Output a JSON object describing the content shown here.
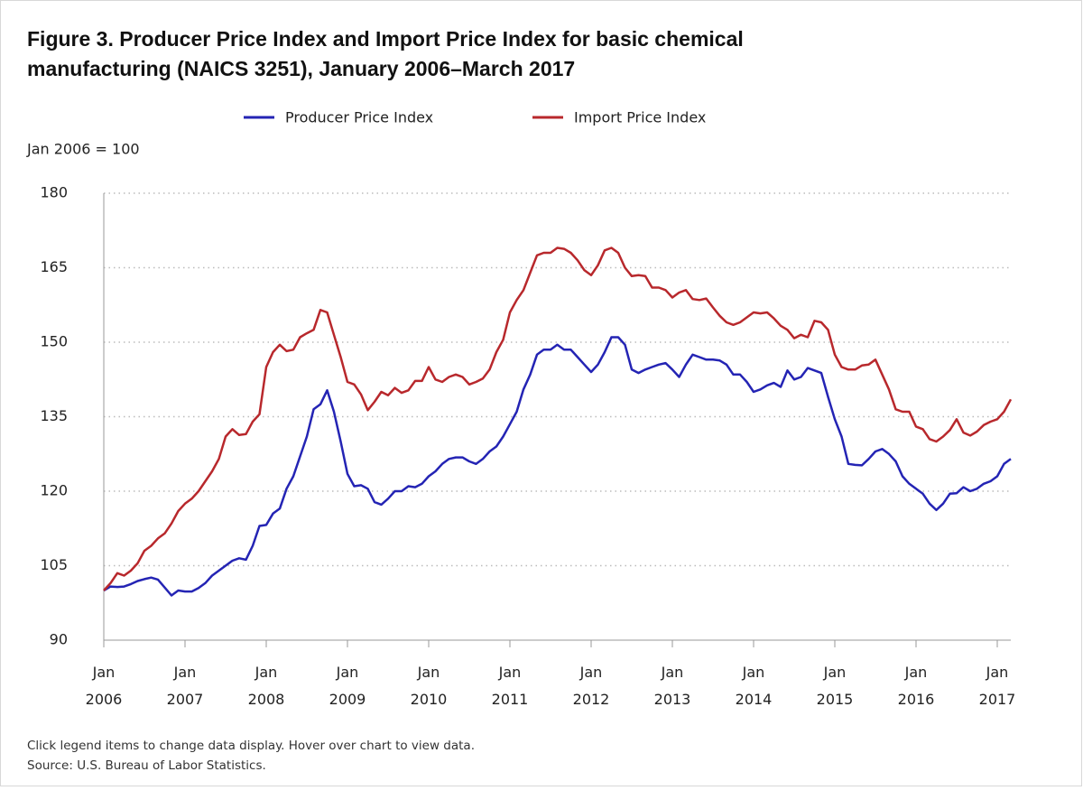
{
  "chart_data": {
    "type": "line",
    "title": "Figure 3. Producer Price Index and Import Price Index for basic chemical manufacturing (NAICS 3251), January 2006–March 2017",
    "y_label": "Jan 2006 = 100",
    "notes": [
      "Click legend items to change data display. Hover over chart to view data.",
      "Source: U.S. Bureau of Labor Statistics."
    ],
    "x": [
      "2006-01",
      "2006-02",
      "2006-03",
      "2006-04",
      "2006-05",
      "2006-06",
      "2006-07",
      "2006-08",
      "2006-09",
      "2006-10",
      "2006-11",
      "2006-12",
      "2007-01",
      "2007-02",
      "2007-03",
      "2007-04",
      "2007-05",
      "2007-06",
      "2007-07",
      "2007-08",
      "2007-09",
      "2007-10",
      "2007-11",
      "2007-12",
      "2008-01",
      "2008-02",
      "2008-03",
      "2008-04",
      "2008-05",
      "2008-06",
      "2008-07",
      "2008-08",
      "2008-09",
      "2008-10",
      "2008-11",
      "2008-12",
      "2009-01",
      "2009-02",
      "2009-03",
      "2009-04",
      "2009-05",
      "2009-06",
      "2009-07",
      "2009-08",
      "2009-09",
      "2009-10",
      "2009-11",
      "2009-12",
      "2010-01",
      "2010-02",
      "2010-03",
      "2010-04",
      "2010-05",
      "2010-06",
      "2010-07",
      "2010-08",
      "2010-09",
      "2010-10",
      "2010-11",
      "2010-12",
      "2011-01",
      "2011-02",
      "2011-03",
      "2011-04",
      "2011-05",
      "2011-06",
      "2011-07",
      "2011-08",
      "2011-09",
      "2011-10",
      "2011-11",
      "2011-12",
      "2012-01",
      "2012-02",
      "2012-03",
      "2012-04",
      "2012-05",
      "2012-06",
      "2012-07",
      "2012-08",
      "2012-09",
      "2012-10",
      "2012-11",
      "2012-12",
      "2013-01",
      "2013-02",
      "2013-03",
      "2013-04",
      "2013-05",
      "2013-06",
      "2013-07",
      "2013-08",
      "2013-09",
      "2013-10",
      "2013-11",
      "2013-12",
      "2014-01",
      "2014-02",
      "2014-03",
      "2014-04",
      "2014-05",
      "2014-06",
      "2014-07",
      "2014-08",
      "2014-09",
      "2014-10",
      "2014-11",
      "2014-12",
      "2015-01",
      "2015-02",
      "2015-03",
      "2015-04",
      "2015-05",
      "2015-06",
      "2015-07",
      "2015-08",
      "2015-09",
      "2015-10",
      "2015-11",
      "2015-12",
      "2016-01",
      "2016-02",
      "2016-03",
      "2016-04",
      "2016-05",
      "2016-06",
      "2016-07",
      "2016-08",
      "2016-09",
      "2016-10",
      "2016-11",
      "2016-12",
      "2017-01",
      "2017-02",
      "2017-03"
    ],
    "xlim": [
      "2006-01",
      "2017-03"
    ],
    "xticks": [
      {
        "value": "2006-01",
        "label": "Jan 2006"
      },
      {
        "value": "2007-01",
        "label": "Jan 2007"
      },
      {
        "value": "2008-01",
        "label": "Jan 2008"
      },
      {
        "value": "2009-01",
        "label": "Jan 2009"
      },
      {
        "value": "2010-01",
        "label": "Jan 2010"
      },
      {
        "value": "2011-01",
        "label": "Jan 2011"
      },
      {
        "value": "2012-01",
        "label": "Jan 2012"
      },
      {
        "value": "2013-01",
        "label": "Jan 2013"
      },
      {
        "value": "2014-01",
        "label": "Jan 2014"
      },
      {
        "value": "2015-01",
        "label": "Jan 2015"
      },
      {
        "value": "2016-01",
        "label": "Jan 2016"
      },
      {
        "value": "2017-01",
        "label": "Jan 2017"
      }
    ],
    "ylim": [
      90,
      180
    ],
    "yticks": [
      90,
      105,
      120,
      135,
      150,
      165,
      180
    ],
    "grid": true,
    "legend": "top",
    "series": [
      {
        "name": "Producer Price Index",
        "color": "#2424b4",
        "values": [
          100,
          100.8,
          100.7,
          100.8,
          101.3,
          101.9,
          102.3,
          102.6,
          102.2,
          100.6,
          99.0,
          100.0,
          99.8,
          99.8,
          100.5,
          101.5,
          103,
          104,
          105,
          106,
          106.5,
          106.2,
          109,
          113,
          113.2,
          115.5,
          116.5,
          120.5,
          123,
          127,
          131,
          136.5,
          137.5,
          140.3,
          136,
          130,
          123.5,
          121,
          121.2,
          120.5,
          117.8,
          117.3,
          118.5,
          120,
          120,
          121,
          120.8,
          121.5,
          123,
          124,
          125.5,
          126.5,
          126.8,
          126.8,
          126,
          125.5,
          126.5,
          128,
          129,
          131,
          133.5,
          136,
          140.5,
          143.5,
          147.5,
          148.5,
          148.5,
          149.5,
          148.5,
          148.5,
          147,
          145.5,
          144,
          145.5,
          148,
          151,
          151,
          149.5,
          144.5,
          143.8,
          144.5,
          145,
          145.5,
          145.8,
          144.5,
          143,
          145.5,
          147.5,
          147,
          146.5,
          146.5,
          146.3,
          145.5,
          143.5,
          143.5,
          142,
          140,
          140.5,
          141.3,
          141.8,
          141,
          144.3,
          142.5,
          143,
          144.8,
          144.3,
          143.8,
          139,
          134.5,
          131,
          125.5,
          125.3,
          125.2,
          126.5,
          128,
          128.5,
          127.5,
          126,
          123,
          121.5,
          120.5,
          119.5,
          117.5,
          116.2,
          117.5,
          119.5,
          119.6,
          120.8,
          120,
          120.5,
          121.5,
          122,
          123,
          125.5,
          126.5
        ]
      },
      {
        "name": "Import Price Index",
        "color": "#b8282c",
        "values": [
          100,
          101.5,
          103.5,
          103,
          104,
          105.5,
          108,
          109,
          110.5,
          111.5,
          113.5,
          116,
          117.5,
          118.5,
          120,
          122,
          124,
          126.5,
          131,
          132.5,
          131.3,
          131.5,
          134,
          135.5,
          145,
          148,
          149.5,
          148.2,
          148.5,
          151,
          151.8,
          152.5,
          156.5,
          156,
          151.5,
          147,
          142,
          141.5,
          139.5,
          136.3,
          138,
          140,
          139.3,
          140.8,
          139.8,
          140.3,
          142.2,
          142.2,
          145,
          142.5,
          142,
          143,
          143.5,
          143,
          141.5,
          142,
          142.7,
          144.5,
          148,
          150.5,
          156,
          158.5,
          160.5,
          164,
          167.5,
          168,
          168,
          169,
          168.8,
          168,
          166.5,
          164.5,
          163.5,
          165.5,
          168.5,
          169,
          168,
          165,
          163.3,
          163.5,
          163.3,
          161,
          161,
          160.5,
          159,
          160,
          160.5,
          158.7,
          158.5,
          158.8,
          157,
          155.3,
          154,
          153.5,
          154,
          155,
          156,
          155.8,
          156,
          154.8,
          153.3,
          152.5,
          150.8,
          151.5,
          151,
          154.3,
          154,
          152.5,
          147.5,
          145,
          144.5,
          144.5,
          145.3,
          145.5,
          146.5,
          143.5,
          140.5,
          136.5,
          136,
          136,
          133,
          132.5,
          130.5,
          130,
          131,
          132.3,
          134.5,
          131.8,
          131.2,
          132,
          133.3,
          134,
          134.5,
          136,
          138.5
        ]
      }
    ]
  }
}
